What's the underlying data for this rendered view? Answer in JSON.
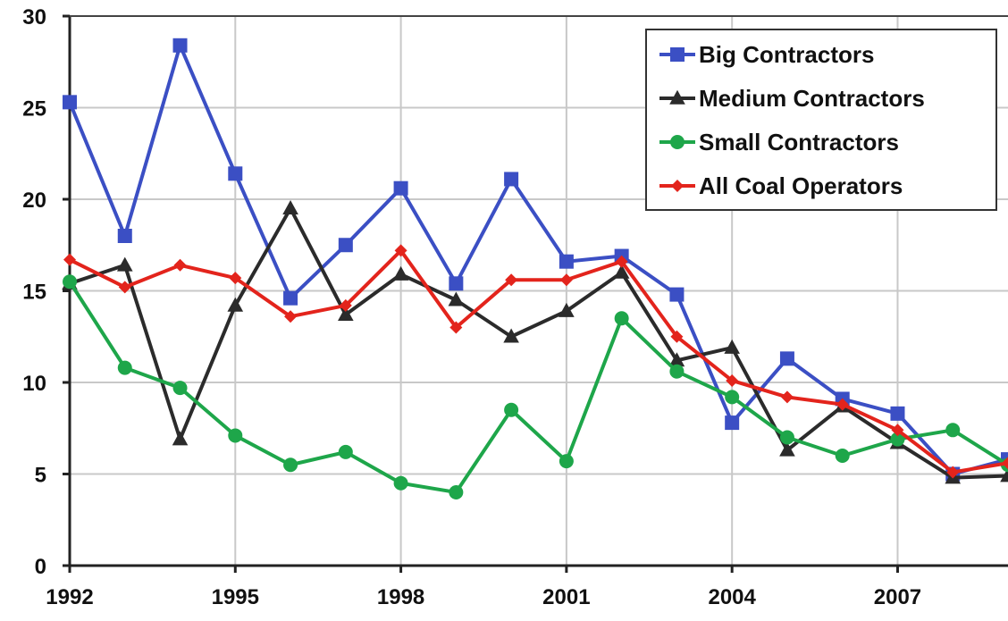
{
  "chart_data": {
    "type": "line",
    "x": [
      1992,
      1993,
      1994,
      1995,
      1996,
      1997,
      1998,
      1999,
      2000,
      2001,
      2002,
      2003,
      2004,
      2005,
      2006,
      2007,
      2008,
      2009
    ],
    "xticks": [
      "1992",
      "1995",
      "1998",
      "2001",
      "2004",
      "2007"
    ],
    "yticks": [
      "0",
      "5",
      "10",
      "15",
      "20",
      "25",
      "30"
    ],
    "ylim": [
      0,
      30
    ],
    "grid": true,
    "legend_position": "top-right",
    "series": [
      {
        "name": "Big Contractors",
        "color": "#3b4fc4",
        "marker": "square",
        "values": [
          25.3,
          18.0,
          28.4,
          21.4,
          14.6,
          17.5,
          20.6,
          15.4,
          21.1,
          16.6,
          16.9,
          14.8,
          7.8,
          11.3,
          9.1,
          8.3,
          5.0,
          5.8
        ]
      },
      {
        "name": "Medium Contractors",
        "color": "#2b2b2b",
        "marker": "triangle",
        "values": [
          15.4,
          16.4,
          6.9,
          14.2,
          19.5,
          13.7,
          15.9,
          14.5,
          12.5,
          13.9,
          16.0,
          11.2,
          11.9,
          6.3,
          8.7,
          6.7,
          4.8,
          4.9
        ]
      },
      {
        "name": "Small Contractors",
        "color": "#1ea64a",
        "marker": "circle",
        "values": [
          15.5,
          10.8,
          9.7,
          7.1,
          5.5,
          6.2,
          4.5,
          4.0,
          8.5,
          5.7,
          13.5,
          10.6,
          9.2,
          7.0,
          6.0,
          6.9,
          7.4,
          5.5
        ]
      },
      {
        "name": "All Coal Operators",
        "color": "#e3241c",
        "marker": "diamond",
        "values": [
          16.7,
          15.2,
          16.4,
          15.7,
          13.6,
          14.2,
          17.2,
          13.0,
          15.6,
          15.6,
          16.6,
          12.5,
          10.1,
          9.2,
          8.8,
          7.4,
          5.1,
          5.6
        ]
      }
    ]
  }
}
